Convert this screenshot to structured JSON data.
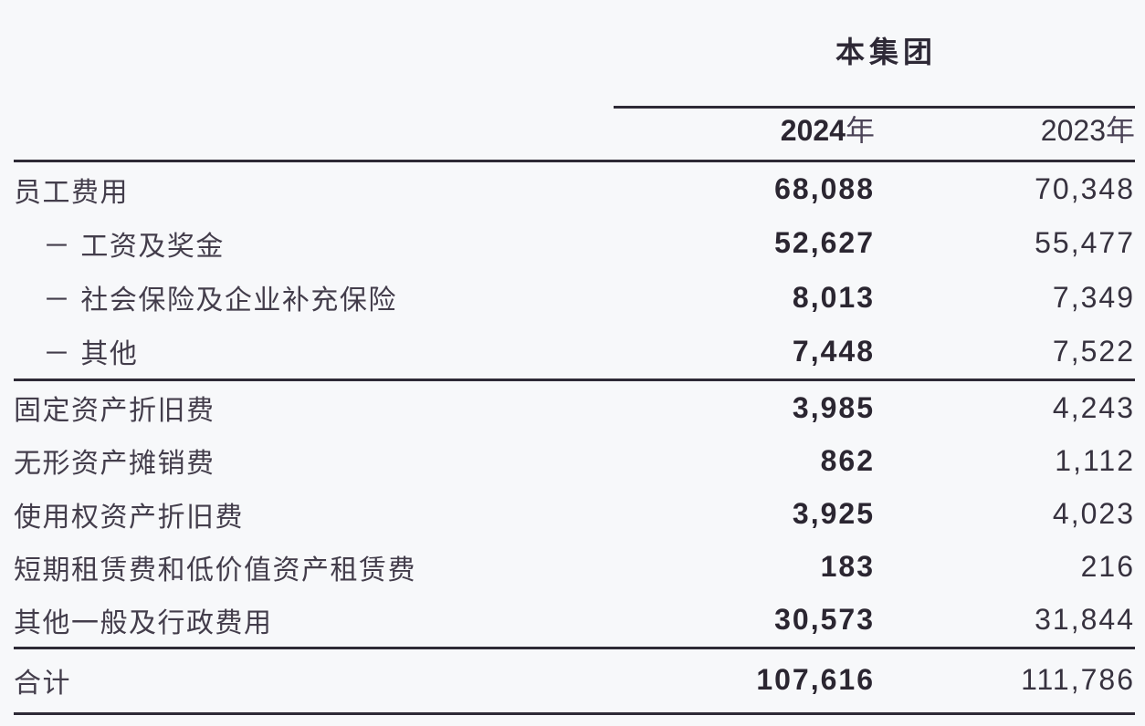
{
  "table": {
    "group_header": "本集团",
    "columns": [
      {
        "year": "2024",
        "suffix": "年"
      },
      {
        "year": "2023",
        "suffix": "年"
      }
    ],
    "rows": [
      {
        "label": "员工费用",
        "v2024": "68,088",
        "v2023": "70,348"
      },
      {
        "label": "－ 工资及奖金",
        "v2024": "52,627",
        "v2023": "55,477"
      },
      {
        "label": "－ 社会保险及企业补充保险",
        "v2024": "8,013",
        "v2023": "7,349"
      },
      {
        "label": "－ 其他",
        "v2024": "7,448",
        "v2023": "7,522"
      },
      {
        "label": "固定资产折旧费",
        "v2024": "3,985",
        "v2023": "4,243"
      },
      {
        "label": "无形资产摊销费",
        "v2024": "862",
        "v2023": "1,112"
      },
      {
        "label": "使用权资产折旧费",
        "v2024": "3,925",
        "v2023": "4,023"
      },
      {
        "label": "短期租赁费和低价值资产租赁费",
        "v2024": "183",
        "v2023": "216"
      },
      {
        "label": "其他一般及行政费用",
        "v2024": "30,573",
        "v2023": "31,844"
      }
    ],
    "total": {
      "label": "合计",
      "v2024": "107,616",
      "v2023": "111,786"
    },
    "colors": {
      "background": "#f7f8fa",
      "label_text": "#433d4b",
      "number_text": "#2b2631",
      "rule_line": "#2e2a36"
    }
  }
}
